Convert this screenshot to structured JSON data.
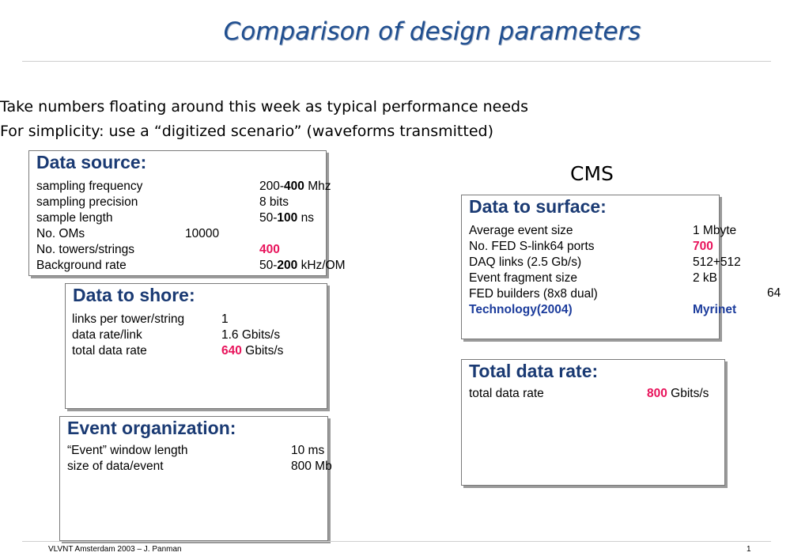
{
  "title": "Comparison of design parameters",
  "intro": [
    "Take numbers floating around this week as typical performance needs",
    "For simplicity: use a “digitized scenario” (waveforms transmitted)"
  ],
  "cms_label": "CMS",
  "data_source": {
    "heading": "Data source:",
    "rows": [
      {
        "label": "sampling frequency",
        "pre": "200-",
        "bold": "400",
        "post": " Mhz"
      },
      {
        "label": "sampling precision",
        "value": "8 bits"
      },
      {
        "label": "sample length",
        "pre": "50-",
        "bold": "100",
        "post": " ns"
      },
      {
        "label": "No. OMs",
        "value": "10000"
      },
      {
        "label": "No. towers/strings",
        "highlight": "400"
      },
      {
        "label": "Background rate",
        "pre": "50-",
        "bold": "200",
        "post": " kHz/OM"
      }
    ]
  },
  "data_to_shore": {
    "heading": "Data to shore:",
    "rows": [
      {
        "label": "links per tower/string",
        "value": "1"
      },
      {
        "label": "data rate/link",
        "value": "1.6 Gbits/s"
      },
      {
        "label": "total data rate",
        "highlight": "640",
        "post": " Gbits/s"
      }
    ]
  },
  "event_organization": {
    "heading": "Event organization:",
    "rows": [
      {
        "label": "“Event” window length",
        "value": "10 ms"
      },
      {
        "label": "size of data/event",
        "value": "800 Mb"
      }
    ]
  },
  "data_to_surface": {
    "heading": "Data to surface:",
    "rows": [
      {
        "label": "Average event size",
        "value": "1 Mbyte"
      },
      {
        "label": "No. FED S-link64 ports",
        "highlight": "700"
      },
      {
        "label": "DAQ links (2.5 Gb/s)",
        "value": "512+512"
      },
      {
        "label": "Event fragment size",
        "value": "2 kB"
      },
      {
        "label": "FED builders (8x8 dual)",
        "value": "64"
      },
      {
        "label": "Technology(2004)",
        "value": "Myrinet"
      }
    ]
  },
  "total_data_rate": {
    "heading": "Total data rate:",
    "rows": [
      {
        "label": "total data rate",
        "highlight": "800",
        "post": " Gbits/s"
      }
    ]
  },
  "footer": {
    "left": "VLVNT Amsterdam 2003 – J. Panman",
    "page": "1"
  },
  "colors": {
    "title": "#1f4e8f",
    "heading": "#1a3a73",
    "highlight": "#e8135b",
    "technology": "#1c3c9c"
  }
}
